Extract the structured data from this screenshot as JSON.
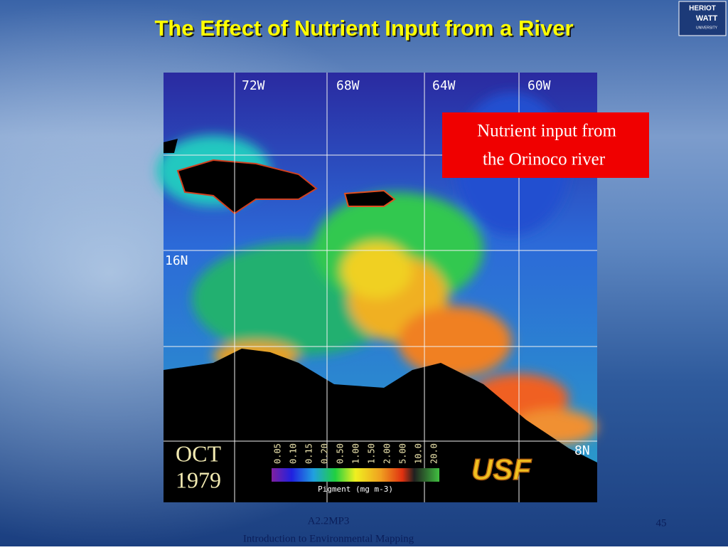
{
  "slide": {
    "title": "The Effect of Nutrient Input from a River",
    "logo": {
      "line1": "HERIOT",
      "line2": "WATT",
      "line3": "UNIVERSITY"
    },
    "map": {
      "longitudes": [
        "72W",
        "68W",
        "64W",
        "60W"
      ],
      "latitudes": [
        "16N",
        "8N"
      ],
      "date": {
        "month": "OCT",
        "year": "1979"
      },
      "legend": {
        "ticks": [
          "0.05",
          "0.10",
          "0.15",
          "0.20",
          "0.50",
          "1.00",
          "1.50",
          "2.00",
          "5.00",
          "10.0",
          "20.0"
        ],
        "label": "Pigment (mg m-3)"
      },
      "credit": "USF"
    },
    "callout": {
      "line1": "Nutrient input from",
      "line2": "the Orinoco river"
    },
    "footer": {
      "code": "A2.2MP3",
      "course": "Introduction to Environmental Mapping",
      "page": "45"
    }
  }
}
